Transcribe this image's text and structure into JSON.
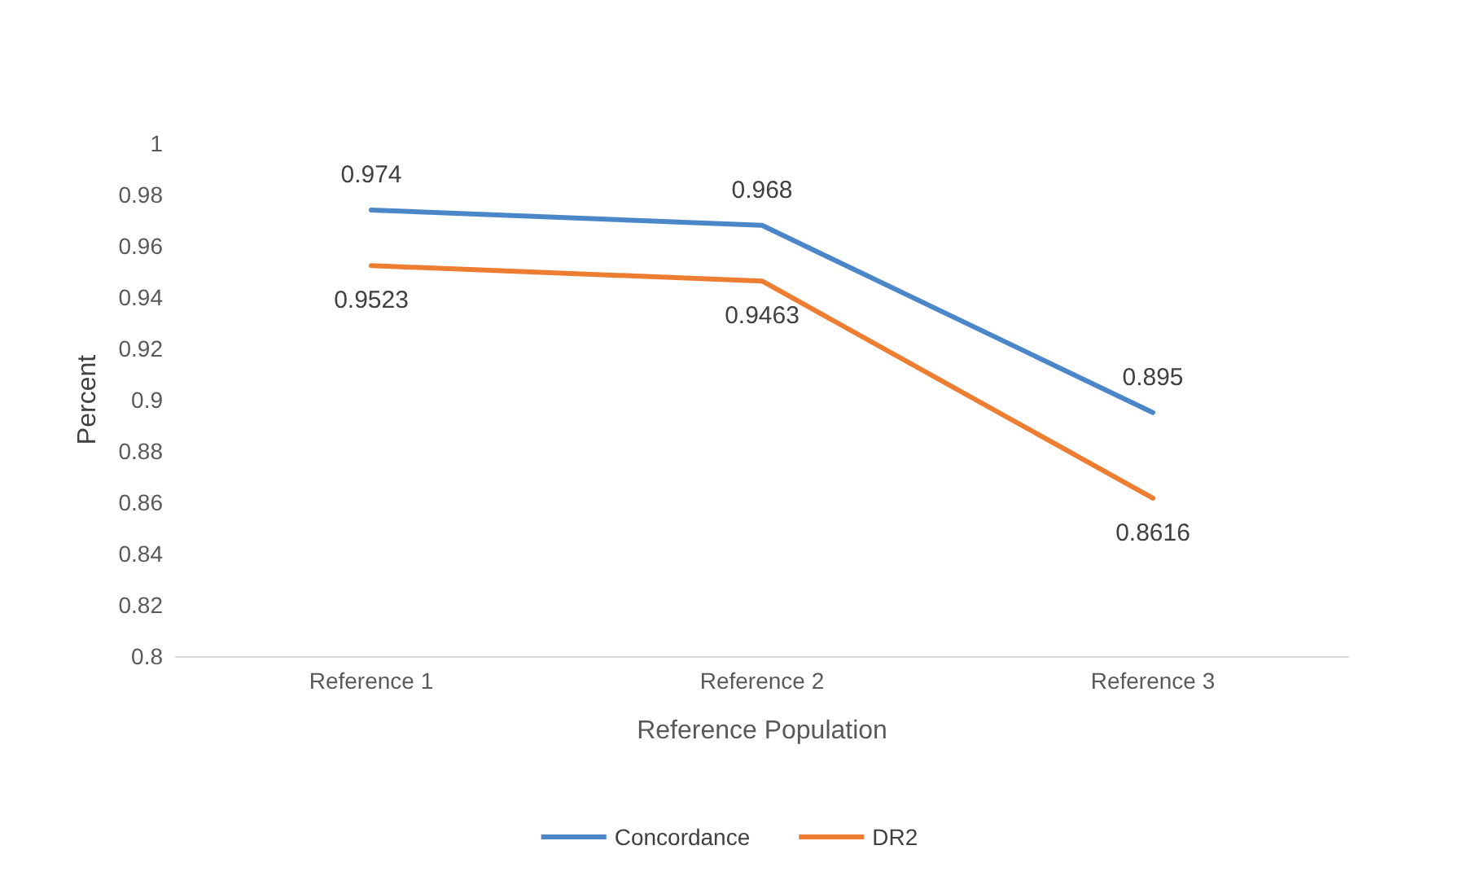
{
  "chart_data": {
    "type": "line",
    "xlabel": "Reference Population",
    "ylabel": "Percent",
    "categories": [
      "Reference 1",
      "Reference 2",
      "Reference 3"
    ],
    "series": [
      {
        "name": "Concordance",
        "color": "#4a86c8",
        "values": [
          0.974,
          0.968,
          0.895
        ]
      },
      {
        "name": "DR2",
        "color": "#ed7d31",
        "values": [
          0.9523,
          0.9463,
          0.8616
        ]
      }
    ],
    "ylim": [
      0.8,
      1
    ],
    "yticks": [
      0.8,
      0.82,
      0.84,
      0.86,
      0.88,
      0.9,
      0.92,
      0.94,
      0.96,
      0.98,
      1
    ],
    "grid": false,
    "legend": "bottom",
    "marker": "none",
    "line_style": "solid",
    "data_labels": true
  }
}
